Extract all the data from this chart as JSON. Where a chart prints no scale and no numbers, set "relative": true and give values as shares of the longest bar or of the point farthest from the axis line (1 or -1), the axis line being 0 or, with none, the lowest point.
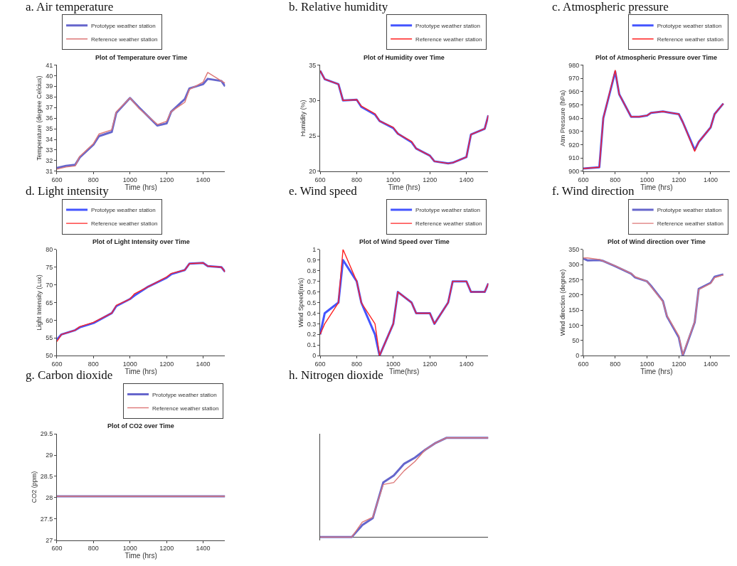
{
  "chart_data": [
    {
      "type": "line",
      "title": "a. Air temperature",
      "subtitle": "Plot of Temperature over Time",
      "xlabel": "Time (hrs)",
      "ylabel": "Temperature (degree Celcius)",
      "x": [
        600,
        650,
        700,
        725,
        800,
        830,
        900,
        925,
        1000,
        1050,
        1150,
        1200,
        1225,
        1300,
        1325,
        1400,
        1425,
        1500,
        1520
      ],
      "xlim": [
        600,
        1520
      ],
      "xticks": [
        600,
        800,
        1000,
        1200,
        1400
      ],
      "ylim": [
        31,
        41
      ],
      "yticks": [
        31,
        32,
        33,
        34,
        35,
        36,
        37,
        38,
        39,
        40,
        41
      ],
      "legend": "top left",
      "series": [
        {
          "name": "Prototype weather station",
          "color": "#6666cc",
          "values": [
            31.3,
            31.5,
            31.6,
            32.3,
            33.5,
            34.3,
            34.7,
            36.5,
            37.9,
            37.0,
            35.3,
            35.5,
            36.6,
            37.8,
            38.8,
            39.2,
            39.7,
            39.5,
            39.0
          ]
        },
        {
          "name": "Reference weather station",
          "color": "#dd7777",
          "values": [
            31.2,
            31.4,
            31.5,
            32.4,
            33.6,
            34.5,
            34.9,
            36.6,
            37.9,
            36.9,
            35.4,
            35.7,
            36.6,
            37.5,
            38.7,
            39.4,
            40.3,
            39.5,
            39.3
          ]
        }
      ]
    },
    {
      "type": "line",
      "title": "b. Relative humidity",
      "subtitle": "Plot of Humidity over Time",
      "xlabel": "Time (hrs)",
      "ylabel": "Humidity (%)",
      "x": [
        600,
        625,
        700,
        725,
        800,
        825,
        900,
        925,
        1000,
        1025,
        1100,
        1125,
        1200,
        1225,
        1300,
        1325,
        1400,
        1425,
        1500,
        1520
      ],
      "xlim": [
        600,
        1520
      ],
      "xticks": [
        600,
        800,
        1000,
        1200,
        1400
      ],
      "ylim": [
        20,
        35
      ],
      "yticks": [
        20,
        25,
        30,
        35
      ],
      "legend": "top right",
      "series": [
        {
          "name": "Prototype weather station",
          "color": "#4455ff",
          "values": [
            34.2,
            33.0,
            32.3,
            30.0,
            30.1,
            29.1,
            28.0,
            27.1,
            26.1,
            25.3,
            24.1,
            23.2,
            22.2,
            21.4,
            21.1,
            21.2,
            22.0,
            25.2,
            26.0,
            27.9
          ]
        },
        {
          "name": "Reference weather station",
          "color": "#ff2222",
          "values": [
            34.2,
            33.0,
            32.3,
            30.0,
            30.1,
            29.2,
            28.1,
            27.1,
            26.2,
            25.3,
            24.2,
            23.2,
            22.2,
            21.4,
            21.1,
            21.2,
            22.0,
            25.2,
            26.0,
            27.9
          ]
        }
      ]
    },
    {
      "type": "line",
      "title": "c. Atmospheric pressure",
      "subtitle": "Plot of Atmospheric Pressure over Time",
      "xlabel": "Time (hrs)",
      "ylabel": "Atm Pressure (hPa)",
      "x": [
        600,
        700,
        725,
        800,
        825,
        900,
        950,
        1000,
        1025,
        1100,
        1150,
        1200,
        1225,
        1300,
        1325,
        1400,
        1425,
        1480
      ],
      "xlim": [
        600,
        1520
      ],
      "xticks": [
        600,
        800,
        1000,
        1200,
        1400
      ],
      "ylim": [
        900,
        980
      ],
      "yticks": [
        900,
        910,
        920,
        930,
        940,
        950,
        960,
        970,
        980
      ],
      "legend": "top right",
      "series": [
        {
          "name": "Prototype weather station",
          "color": "#4455ff",
          "values": [
            902,
            903,
            940,
            975,
            958,
            941,
            941,
            942,
            944,
            945,
            944,
            943,
            937,
            916,
            922,
            933,
            943,
            951
          ]
        },
        {
          "name": "Reference weather station",
          "color": "#ff2222",
          "values": [
            902,
            903,
            940,
            976,
            958,
            941,
            941,
            942,
            944,
            945,
            944,
            943,
            937,
            915,
            922,
            933,
            943,
            951
          ]
        }
      ]
    },
    {
      "type": "line",
      "title": "d. Light intensity",
      "subtitle": "Plot of Light Intensity over Time",
      "xlabel": "Time (hrs)",
      "ylabel": "Light Intensity (Lux)",
      "x": [
        600,
        625,
        700,
        725,
        800,
        900,
        925,
        1000,
        1025,
        1100,
        1200,
        1225,
        1300,
        1325,
        1400,
        1425,
        1500,
        1520
      ],
      "xlim": [
        600,
        1520
      ],
      "xticks": [
        600,
        800,
        1000,
        1200,
        1400
      ],
      "ylim": [
        50,
        80
      ],
      "yticks": [
        50,
        55,
        60,
        65,
        70,
        75,
        80
      ],
      "legend": "top left",
      "series": [
        {
          "name": "Prototype weather station",
          "color": "#4455ff",
          "values": [
            54.5,
            56,
            57.2,
            58,
            59.2,
            62,
            64,
            66,
            67,
            69.5,
            72,
            73,
            74.2,
            76,
            76.2,
            75.3,
            75,
            73.7
          ]
        },
        {
          "name": "Reference weather station",
          "color": "#ff2222",
          "values": [
            54,
            56,
            57.2,
            58.2,
            59.4,
            62,
            64.2,
            66,
            67.5,
            69.5,
            72.2,
            73.2,
            74.2,
            76,
            76.2,
            75.3,
            75,
            73.7
          ]
        }
      ]
    },
    {
      "type": "line",
      "title": "e. Wind speed",
      "subtitle": "Plot of Wind Speed over Time",
      "xlabel": "Time(hrs)",
      "ylabel": "Wind Speed(m/s)",
      "x": [
        600,
        625,
        700,
        725,
        800,
        825,
        900,
        925,
        1000,
        1025,
        1100,
        1125,
        1200,
        1225,
        1300,
        1325,
        1400,
        1425,
        1500,
        1520
      ],
      "xlim": [
        600,
        1520
      ],
      "xticks": [
        600,
        800,
        1000,
        1200,
        1400
      ],
      "ylim": [
        0,
        1
      ],
      "yticks": [
        0,
        0.1,
        0.2,
        0.3,
        0.4,
        0.5,
        0.6,
        0.7,
        0.8,
        0.9,
        1
      ],
      "legend": "top right",
      "series": [
        {
          "name": "Prototype weather station",
          "color": "#4455ff",
          "values": [
            0.2,
            0.4,
            0.5,
            0.9,
            0.7,
            0.5,
            0.2,
            0,
            0.3,
            0.6,
            0.5,
            0.4,
            0.4,
            0.3,
            0.5,
            0.7,
            0.7,
            0.6,
            0.6,
            0.68
          ]
        },
        {
          "name": "Reference weather station",
          "color": "#ff2222",
          "values": [
            0.2,
            0.3,
            0.5,
            1.0,
            0.7,
            0.5,
            0.3,
            0,
            0.3,
            0.6,
            0.5,
            0.4,
            0.4,
            0.3,
            0.5,
            0.7,
            0.7,
            0.6,
            0.6,
            0.68
          ]
        }
      ]
    },
    {
      "type": "line",
      "title": "f. Wind direction",
      "subtitle": "Plot of Wind direction over Time",
      "xlabel": "Time (hrs)",
      "ylabel": "Wind direction (degree)",
      "x": [
        600,
        625,
        700,
        725,
        800,
        900,
        925,
        1000,
        1025,
        1100,
        1125,
        1200,
        1225,
        1300,
        1325,
        1400,
        1425,
        1480
      ],
      "xlim": [
        600,
        1520
      ],
      "xticks": [
        600,
        800,
        1000,
        1200,
        1400
      ],
      "ylim": [
        0,
        350
      ],
      "yticks": [
        0,
        50,
        100,
        150,
        200,
        250,
        300,
        350
      ],
      "legend": "top right",
      "series": [
        {
          "name": "Prototype weather station",
          "color": "#6666cc",
          "values": [
            320,
            314,
            315,
            312,
            295,
            270,
            258,
            245,
            230,
            180,
            130,
            60,
            0,
            110,
            220,
            240,
            260,
            268
          ]
        },
        {
          "name": "Reference weather station",
          "color": "#dd7777",
          "values": [
            322,
            322,
            317,
            312,
            296,
            271,
            260,
            245,
            228,
            178,
            132,
            65,
            3,
            112,
            218,
            238,
            257,
            266
          ]
        }
      ]
    },
    {
      "type": "line",
      "title": "g. Carbon dioxide",
      "subtitle": "Plot of CO2 over Time",
      "xlabel": "Time (hrs)",
      "ylabel": "CO2 (ppm)",
      "x": [
        600,
        1520
      ],
      "xlim": [
        600,
        1520
      ],
      "xticks": [
        600,
        800,
        1000,
        1200,
        1400
      ],
      "ylim": [
        27,
        29.5
      ],
      "yticks": [
        27,
        27.5,
        28,
        28.5,
        29,
        29.5
      ],
      "legend": "top right",
      "series": [
        {
          "name": "Prototype weather station",
          "color": "#6666cc",
          "values": [
            28.03,
            28.03
          ]
        },
        {
          "name": "Reference weather station",
          "color": "#dd7777",
          "values": [
            28.03,
            28.03
          ]
        }
      ]
    },
    {
      "type": "line",
      "title": "h. Nitrogen dioxide",
      "relative": true,
      "categories": [
        null,
        null,
        null,
        null,
        null,
        null,
        null,
        null,
        null,
        null,
        null,
        null,
        null,
        null,
        null,
        null,
        null
      ],
      "series": [
        {
          "color": "#6666cc",
          "values": [
            0,
            0,
            0,
            0,
            0.12,
            0.19,
            0.55,
            0.62,
            0.74,
            0.8,
            0.88,
            0.95,
            1,
            1,
            1,
            1,
            1
          ]
        },
        {
          "color": "#dd7777",
          "values": [
            0,
            0,
            0,
            0,
            0.15,
            0.2,
            0.53,
            0.55,
            0.67,
            0.76,
            0.88,
            0.95,
            1,
            1,
            1,
            1,
            1
          ]
        }
      ]
    }
  ]
}
